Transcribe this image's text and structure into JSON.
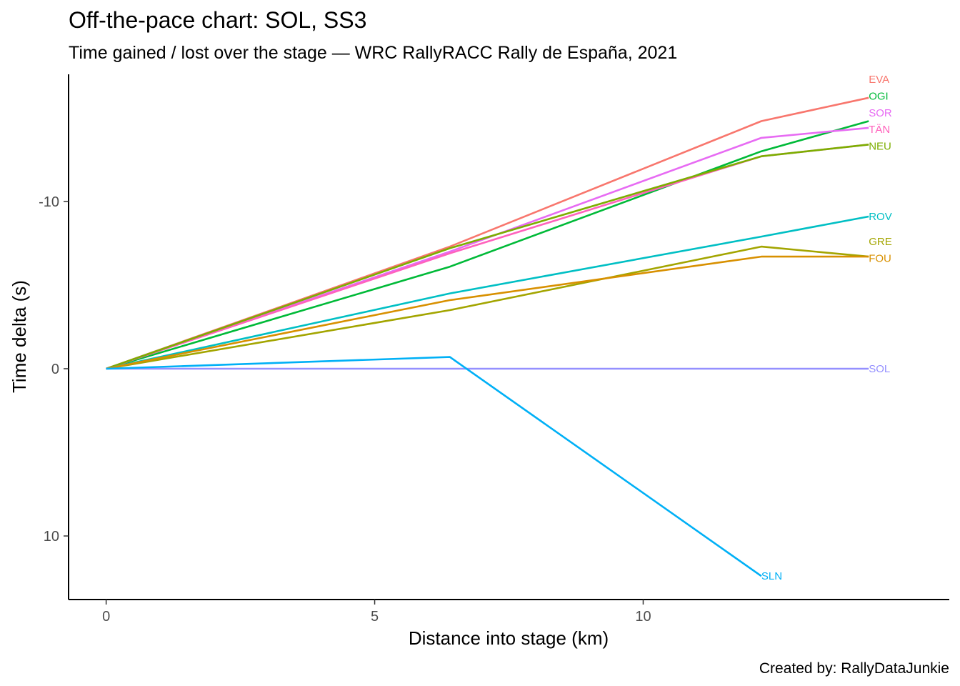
{
  "chart_data": {
    "type": "line",
    "title": "Off-the-pace chart: SOL, SS3",
    "subtitle": "Time gained / lost over the stage — WRC RallyRACC Rally de España, 2021",
    "xlabel": "Distance into stage (km)",
    "ylabel": "Time delta (s)",
    "caption": "Created by: RallyDataJunkie",
    "xlim": [
      -0.7,
      15.7
    ],
    "ylim": [
      13.8,
      -17.6
    ],
    "y_reversed": true,
    "x_ticks": [
      0,
      5,
      10
    ],
    "y_ticks": [
      -10,
      0,
      10
    ],
    "grid": false,
    "legend": "none",
    "series": [
      {
        "name": "EVA",
        "color": "#F8766D",
        "x": [
          0,
          6.4,
          12.2,
          14.2
        ],
        "y": [
          0,
          -7.3,
          -14.8,
          -16.2
        ]
      },
      {
        "name": "OGI",
        "color": "#00BA38",
        "x": [
          0,
          6.4,
          12.2,
          14.2
        ],
        "y": [
          0,
          -6.1,
          -13.0,
          -14.8
        ]
      },
      {
        "name": "SOR",
        "color": "#E76BF3",
        "x": [
          0,
          6.4,
          12.2,
          14.2
        ],
        "y": [
          0,
          -7.0,
          -13.8,
          -14.4
        ]
      },
      {
        "name": "TÄN",
        "color": "#FF62BC",
        "x": [
          0,
          6.4,
          12.2,
          14.2
        ],
        "y": [
          0,
          -6.9,
          -12.7,
          -13.4
        ]
      },
      {
        "name": "NEU",
        "color": "#7CAE00",
        "x": [
          0,
          6.4,
          12.2,
          14.2
        ],
        "y": [
          0,
          -7.2,
          -12.7,
          -13.4
        ]
      },
      {
        "name": "ROV",
        "color": "#00BFC4",
        "x": [
          0,
          6.4,
          12.2,
          14.2
        ],
        "y": [
          0,
          -4.5,
          -7.9,
          -9.1
        ]
      },
      {
        "name": "GRE",
        "color": "#A3A500",
        "x": [
          0,
          6.4,
          12.2,
          14.2
        ],
        "y": [
          0,
          -3.5,
          -7.3,
          -6.7
        ]
      },
      {
        "name": "FOU",
        "color": "#D89000",
        "x": [
          0,
          6.4,
          12.2,
          14.2
        ],
        "y": [
          0,
          -4.1,
          -6.7,
          -6.7
        ]
      },
      {
        "name": "SOL",
        "color": "#9590FF",
        "x": [
          0,
          6.4,
          12.2,
          14.2
        ],
        "y": [
          0,
          0,
          0,
          0
        ]
      },
      {
        "name": "SLN",
        "color": "#00B0F6",
        "x": [
          0,
          6.4,
          12.2
        ],
        "y": [
          0,
          -0.7,
          12.4
        ]
      }
    ],
    "label_y": {
      "EVA": -17.3,
      "OGI": -16.3,
      "SOR": -15.3,
      "TÄN": -14.3,
      "NEU": -13.3,
      "ROV": -9.1,
      "GRE": -7.6,
      "FOU": -6.6,
      "SOL": 0,
      "SLN": 12.4
    }
  }
}
